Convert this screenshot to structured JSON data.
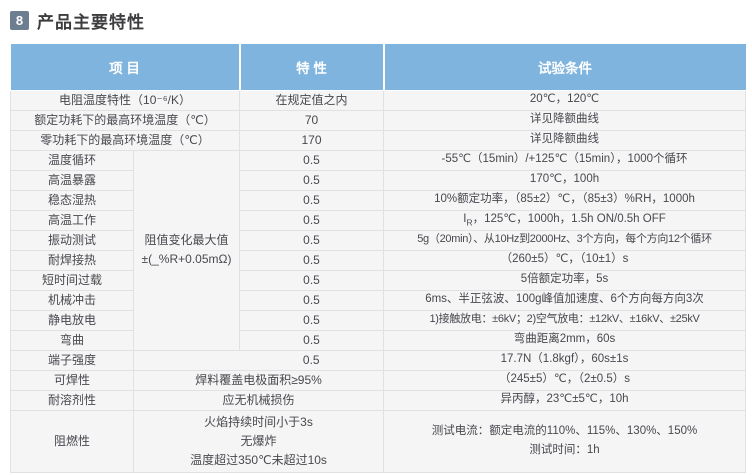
{
  "page": {
    "section_number": "8",
    "title": "产品主要特性"
  },
  "colors": {
    "header_bg": "#7fb4de",
    "badge_bg": "#6d7e90",
    "row_bg": "#f5f5f6",
    "border": "#e1e1e3"
  },
  "table": {
    "headers": {
      "item": "项 目",
      "characteristic": "特 性",
      "test_condition": "试验条件"
    },
    "merged_note": {
      "line1": "阻值变化最大值",
      "line2": "±(_%R+0.05mΩ)"
    },
    "rows": [
      {
        "item": "电阻温度特性（10⁻⁶/K）",
        "value": "在规定值之内",
        "cond": "20℃，120℃"
      },
      {
        "item": "额定功耗下的最高环境温度（℃）",
        "value": "70",
        "cond": "详见降额曲线"
      },
      {
        "item": "零功耗下的最高环境温度（℃）",
        "value": "170",
        "cond": "详见降额曲线"
      },
      {
        "item": "温度循环",
        "value": "0.5",
        "cond": "-55℃（15min）/+125℃（15min），1000个循环"
      },
      {
        "item": "高温暴露",
        "value": "0.5",
        "cond": "170℃，100h"
      },
      {
        "item": "稳态湿热",
        "value": "0.5",
        "cond": "10%额定功率，（85±2）℃，（85±3）%RH，1000h"
      },
      {
        "item": "高温工作",
        "value": "0.5",
        "cond_pre": "I",
        "cond_sub": "R",
        "cond_post": "，125℃，1000h，1.5h ON/0.5h OFF"
      },
      {
        "item": "振动测试",
        "value": "0.5",
        "cond": "5g（20min）、从10Hz到2000Hz、3个方向，每个方向12个循环"
      },
      {
        "item": "耐焊接热",
        "value": "0.5",
        "cond": "（260±5）℃，（10±1）s"
      },
      {
        "item": "短时间过载",
        "value": "0.5",
        "cond": "5倍额定功率，5s"
      },
      {
        "item": "机械冲击",
        "value": "0.5",
        "cond": "6ms、半正弦波、100g峰值加速度、6个方向每方向3次"
      },
      {
        "item": "静电放电",
        "value": "0.5",
        "cond": "1)接触放电：±6kV；2)空气放电：±12kV、±16kV、±25kV"
      },
      {
        "item": "弯曲",
        "value": "0.5",
        "cond": "弯曲距离2mm，60s"
      },
      {
        "item": "端子强度",
        "value": "0.5",
        "cond": "17.7N（1.8kgf），60s±1s"
      },
      {
        "item": "可焊性",
        "value": "焊料覆盖电极面积≥95%",
        "cond": "（245±5）℃，（2±0.5）s"
      },
      {
        "item": "耐溶剂性",
        "value": "应无机械损伤",
        "cond": "异丙醇，23℃±5℃，10h"
      },
      {
        "item": "阻燃性",
        "value_lines": [
          "火焰持续时间小于3s",
          "无爆炸",
          "温度超过350℃未超过10s"
        ],
        "cond_lines": [
          "测试电流：额定电流的110%、115%、130%、150%",
          "测试时间：1h"
        ]
      }
    ]
  }
}
